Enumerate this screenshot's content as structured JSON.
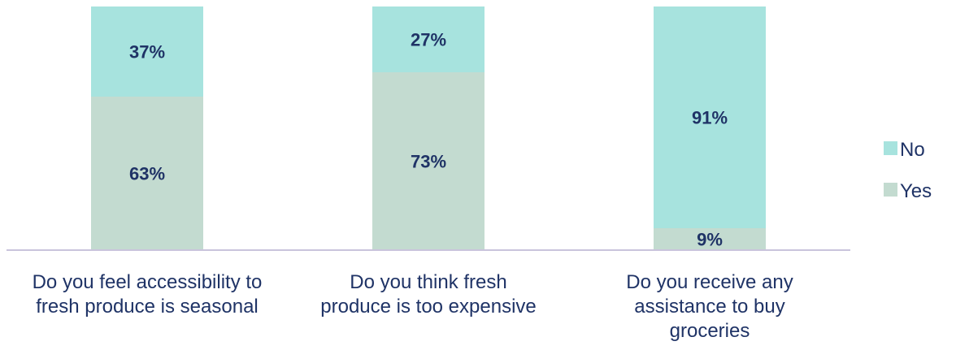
{
  "chart_data": {
    "type": "bar",
    "stacked": true,
    "percent": true,
    "categories": [
      [
        "Do you feel accessibility to",
        "fresh produce is seasonal"
      ],
      [
        "Do you think fresh",
        "produce is too expensive"
      ],
      [
        "Do you receive any",
        "assistance to buy",
        "groceries"
      ]
    ],
    "series": [
      {
        "name": "Yes",
        "values": [
          63,
          73,
          9
        ],
        "labels": [
          "63%",
          "73%",
          "9%"
        ],
        "color": "#c3dbd0"
      },
      {
        "name": "No",
        "values": [
          37,
          27,
          91
        ],
        "labels": [
          "37%",
          "27%",
          "91%"
        ],
        "color": "#a7e3de"
      }
    ],
    "ylim": [
      0,
      100
    ],
    "legend": {
      "position": "right",
      "order": [
        "No",
        "Yes"
      ]
    },
    "grid": false,
    "colors": {
      "label_text": "#1f3366",
      "baseline": "#c9c4dc"
    }
  }
}
